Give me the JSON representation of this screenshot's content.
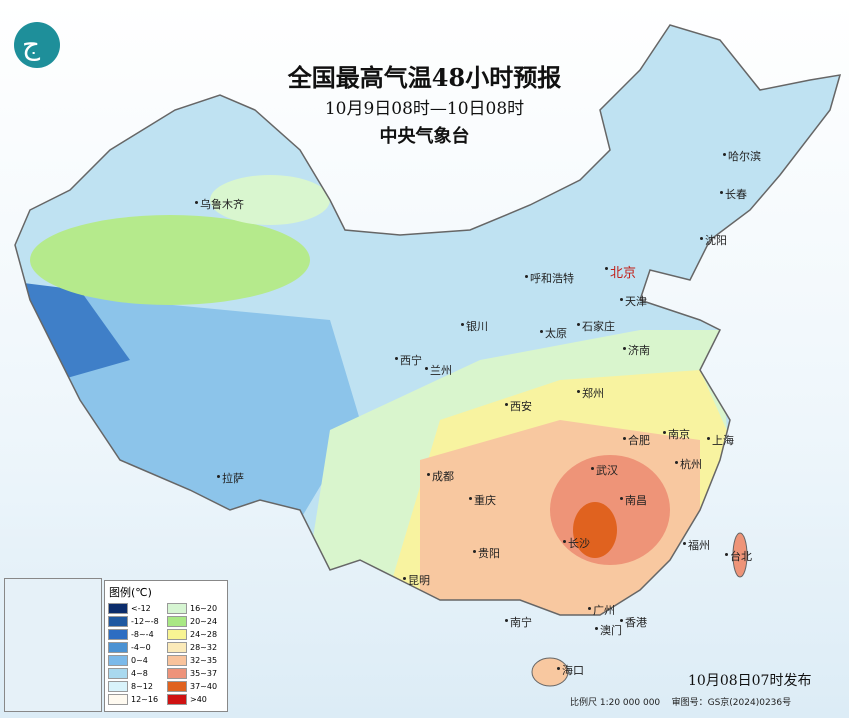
{
  "header": {
    "title": "全国最高气温48小时预报",
    "period": "10月9日08时—10日08时",
    "issuer": "中央气象台"
  },
  "cities": {
    "urumqi": "乌鲁木齐",
    "harbin": "哈尔滨",
    "changchun": "长春",
    "shenyang": "沈阳",
    "hohhot": "呼和浩特",
    "beijing": "北京",
    "tianjin": "天津",
    "yinchuan": "银川",
    "taiyuan": "太原",
    "shijiazhuang": "石家庄",
    "xining": "西宁",
    "lanzhou": "兰州",
    "jinan": "济南",
    "zhengzhou": "郑州",
    "xian": "西安",
    "hefei": "合肥",
    "nanjing": "南京",
    "shanghai": "上海",
    "lhasa": "拉萨",
    "chengdu": "成都",
    "wuhan": "武汉",
    "hangzhou": "杭州",
    "chongqing": "重庆",
    "changsha": "长沙",
    "nanchang": "南昌",
    "guiyang": "贵阳",
    "fuzhou": "福州",
    "taipei": "台北",
    "kunming": "昆明",
    "nanning": "南宁",
    "guangzhou": "广州",
    "xianggang": "香港",
    "aomen": "澳门",
    "haikou": "海口"
  },
  "legend": {
    "title": "图例(℃)",
    "items": [
      {
        "label": "<-12",
        "color": "#0b2c6b"
      },
      {
        "label": "16~20",
        "color": "#d6f5d2"
      },
      {
        "label": "-12~-8",
        "color": "#1f58a0"
      },
      {
        "label": "20~24",
        "color": "#a9e884"
      },
      {
        "label": "-8~-4",
        "color": "#2d6dc2"
      },
      {
        "label": "24~28",
        "color": "#f8f493"
      },
      {
        "label": "-4~0",
        "color": "#4b92d3"
      },
      {
        "label": "28~32",
        "color": "#fbeab9"
      },
      {
        "label": "0~4",
        "color": "#7bb9e9"
      },
      {
        "label": "32~35",
        "color": "#f9c39c"
      },
      {
        "label": "4~8",
        "color": "#a9d9ef"
      },
      {
        "label": "35~37",
        "color": "#ee937a"
      },
      {
        "label": "8~12",
        "color": "#d9f3fb"
      },
      {
        "label": "37~40",
        "color": "#e0621f"
      },
      {
        "label": "12~16",
        "color": "#fffaf0"
      },
      {
        "label": ">40",
        "color": "#cf1212"
      }
    ]
  },
  "footer": {
    "release": "10月08日07时发布",
    "scale": "比例尺 1:20 000 000",
    "review": "审图号：GS京(2024)0236号"
  }
}
